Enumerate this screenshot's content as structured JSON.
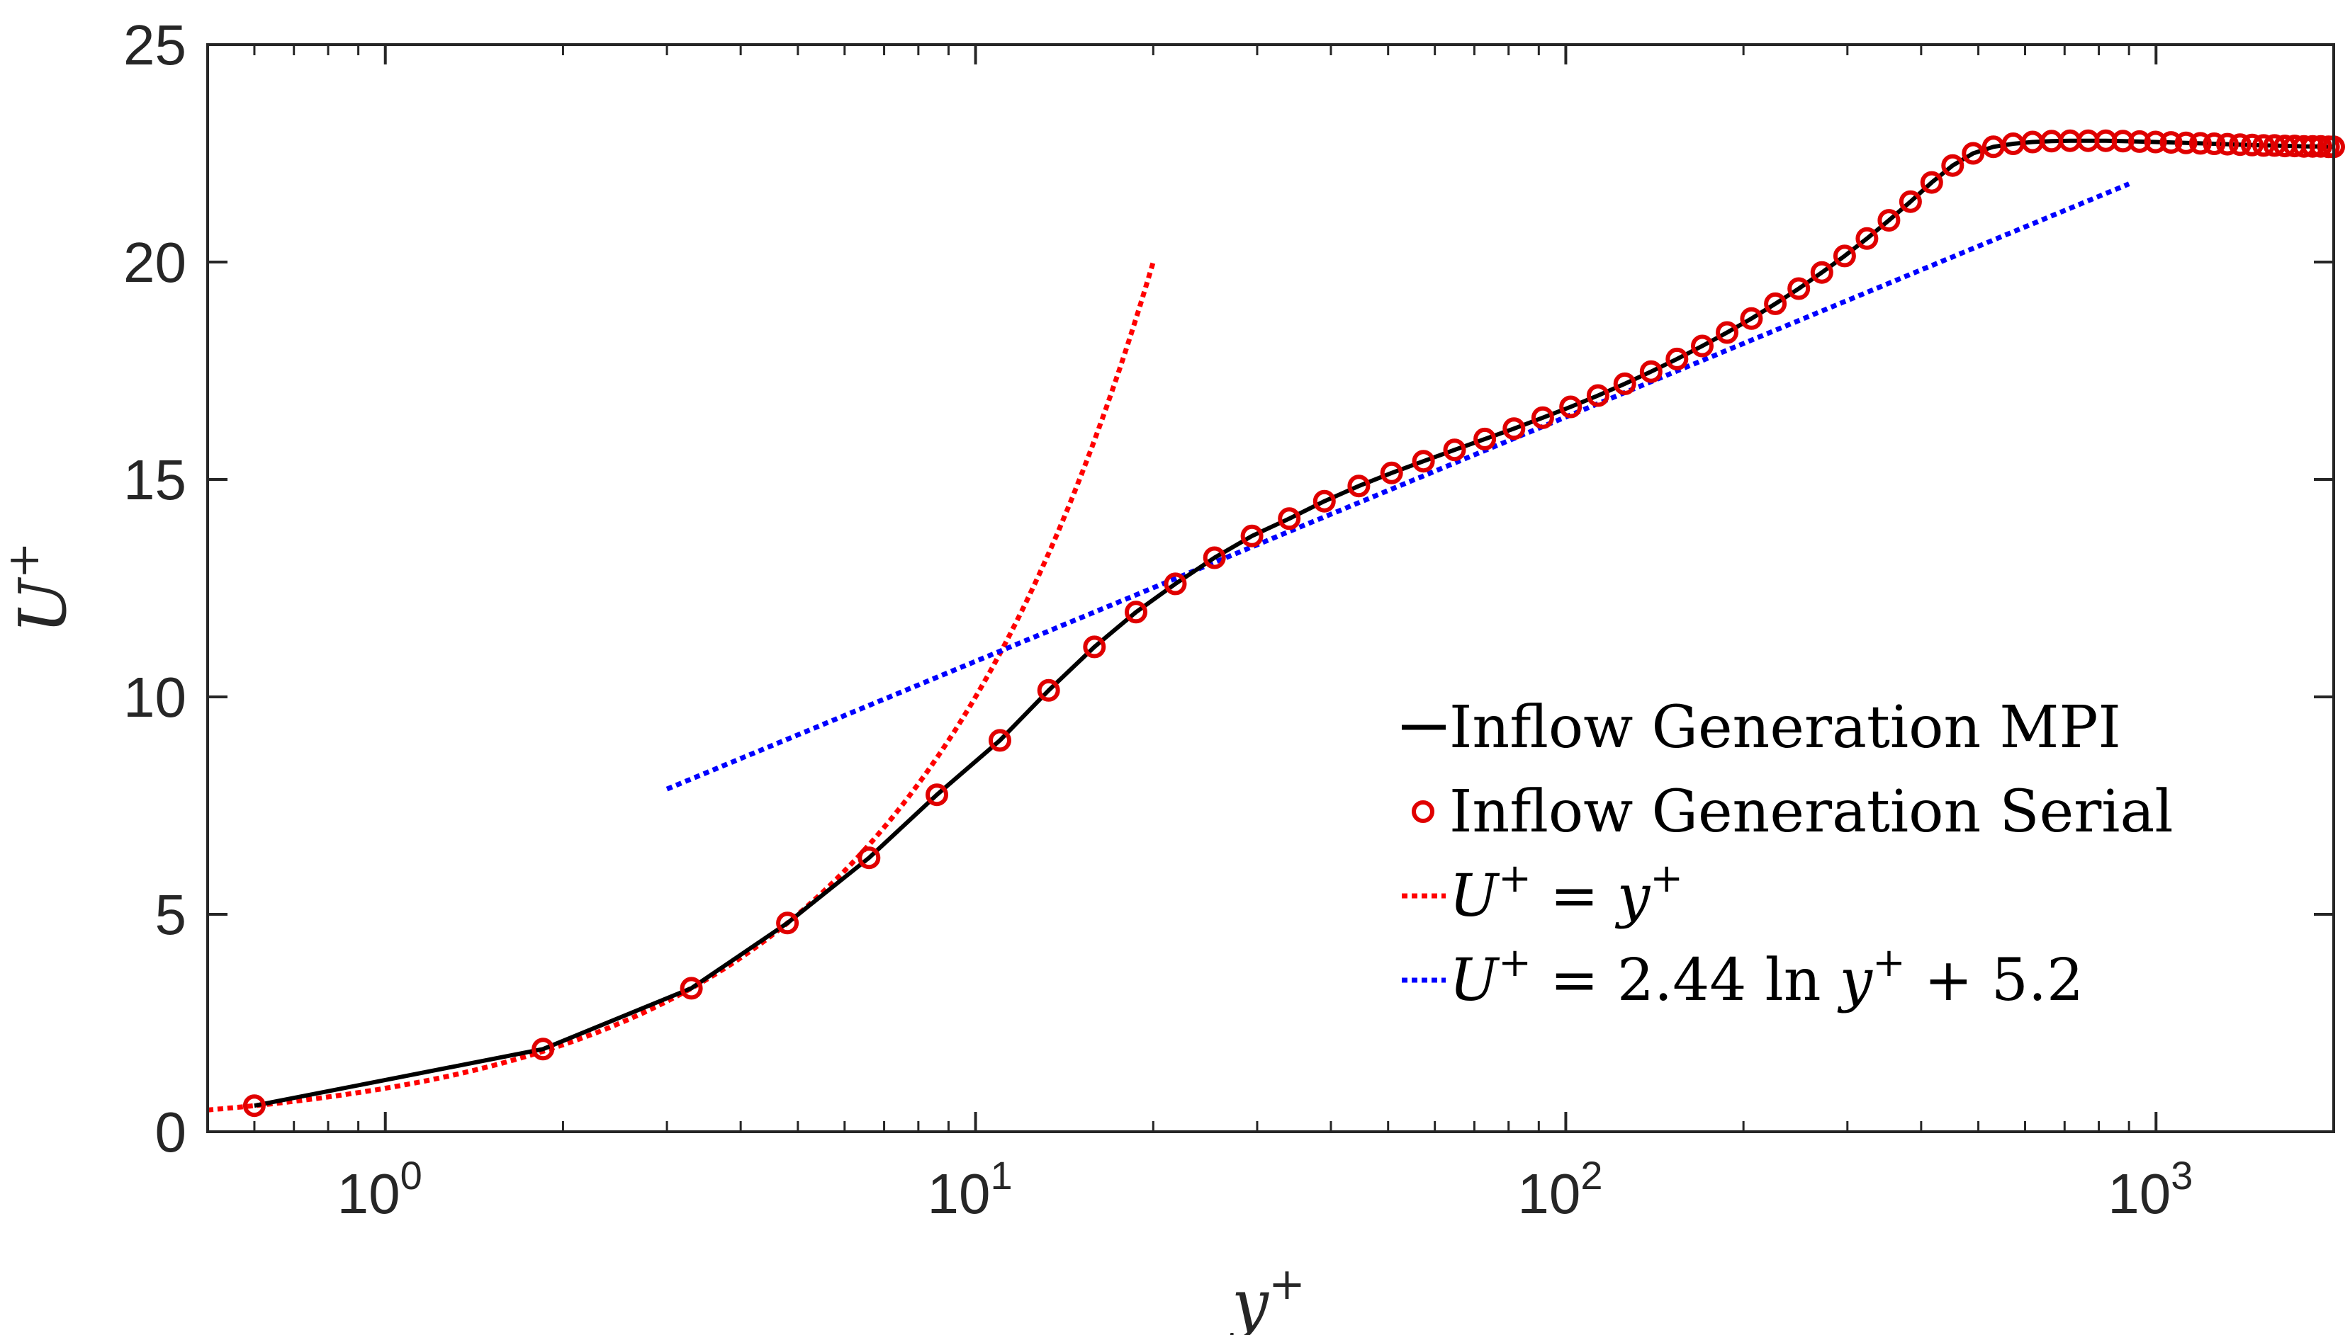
{
  "chart_data": {
    "type": "line",
    "xscale": "log",
    "xlim": [
      0.5,
      2000
    ],
    "ylim": [
      0,
      25
    ],
    "grid": false,
    "legend_position": "right",
    "xlabel": {
      "base": "y",
      "sup": "+"
    },
    "ylabel": {
      "base": "U",
      "sup": "+"
    },
    "x_ticks": [
      {
        "base": "10",
        "exp": "0"
      },
      {
        "base": "10",
        "exp": "1"
      },
      {
        "base": "10",
        "exp": "2"
      },
      {
        "base": "10",
        "exp": "3"
      }
    ],
    "y_ticks": [
      "0",
      "5",
      "10",
      "15",
      "20",
      "25"
    ],
    "series": [
      {
        "name": "Inflow Generation MPI",
        "style": "solid",
        "color": "#000000",
        "x": [
          0.6,
          1.85,
          3.3,
          4.8,
          6.6,
          8.6,
          11,
          13.3,
          15.9,
          18.7,
          21.8,
          25.4,
          29.4,
          34,
          39,
          44.6,
          50.7,
          57.4,
          64.8,
          72.9,
          81.7,
          91.4,
          101.9,
          113.4,
          125.9,
          139.5,
          154.3,
          170.3,
          187.6,
          206.3,
          226.5,
          248.2,
          271.6,
          296.8,
          323.8,
          352.8,
          383.8,
          416.9,
          452.3,
          490.1,
          530.2,
          572.8,
          617.8,
          665.3,
          715.2,
          767.5,
          822.1,
          878.8,
          937.6,
          998.2,
          1060.5,
          1124.1,
          1189,
          1254.8,
          1321.2,
          1388,
          1454.8,
          1521.5,
          1587.6,
          1653,
          1717.4,
          1780.5,
          1842.1,
          1902,
          1960,
          2000
        ],
        "y": [
          0.6,
          1.9,
          3.3,
          4.8,
          6.3,
          7.75,
          9.0,
          10.15,
          11.15,
          11.95,
          12.6,
          13.2,
          13.7,
          14.1,
          14.5,
          14.85,
          15.15,
          15.42,
          15.68,
          15.93,
          16.17,
          16.42,
          16.67,
          16.93,
          17.2,
          17.48,
          17.77,
          18.07,
          18.38,
          18.7,
          19.04,
          19.39,
          19.76,
          20.14,
          20.54,
          20.96,
          21.39,
          21.83,
          22.22,
          22.5,
          22.65,
          22.72,
          22.76,
          22.78,
          22.79,
          22.79,
          22.79,
          22.78,
          22.77,
          22.76,
          22.75,
          22.74,
          22.73,
          22.72,
          22.71,
          22.7,
          22.69,
          22.68,
          22.68,
          22.67,
          22.67,
          22.66,
          22.66,
          22.66,
          22.65,
          22.65
        ]
      },
      {
        "name": "Inflow Generation Serial",
        "style": "markers",
        "marker": "circle",
        "color": "#e00000",
        "x": [
          0.6,
          1.85,
          3.3,
          4.8,
          6.6,
          8.6,
          11,
          13.3,
          15.9,
          18.7,
          21.8,
          25.4,
          29.4,
          34,
          39,
          44.6,
          50.7,
          57.4,
          64.8,
          72.9,
          81.7,
          91.4,
          101.9,
          113.4,
          125.9,
          139.5,
          154.3,
          170.3,
          187.6,
          206.3,
          226.5,
          248.2,
          271.6,
          296.8,
          323.8,
          352.8,
          383.8,
          416.9,
          452.3,
          490.1,
          530.2,
          572.8,
          617.8,
          665.3,
          715.2,
          767.5,
          822.1,
          878.8,
          937.6,
          998.2,
          1060.5,
          1124.1,
          1189,
          1254.8,
          1321.2,
          1388,
          1454.8,
          1521.5,
          1587.6,
          1653,
          1717.4,
          1780.5,
          1842.1,
          1902,
          1960,
          2000
        ],
        "y": [
          0.6,
          1.9,
          3.3,
          4.8,
          6.3,
          7.75,
          9.0,
          10.15,
          11.15,
          11.95,
          12.6,
          13.2,
          13.7,
          14.1,
          14.5,
          14.85,
          15.15,
          15.42,
          15.68,
          15.93,
          16.17,
          16.42,
          16.67,
          16.93,
          17.2,
          17.48,
          17.77,
          18.07,
          18.38,
          18.7,
          19.04,
          19.39,
          19.76,
          20.14,
          20.54,
          20.96,
          21.39,
          21.83,
          22.22,
          22.5,
          22.65,
          22.72,
          22.76,
          22.78,
          22.79,
          22.79,
          22.79,
          22.78,
          22.77,
          22.76,
          22.75,
          22.74,
          22.73,
          22.72,
          22.71,
          22.7,
          22.69,
          22.68,
          22.68,
          22.67,
          22.67,
          22.66,
          22.66,
          22.66,
          22.65,
          22.65
        ]
      },
      {
        "name": "U+ = y+",
        "style": "dotted",
        "color": "#ff0000",
        "formula": "U+ = y+",
        "x_range": [
          0.5,
          20
        ]
      },
      {
        "name": "U+ = 2.44 ln y+ + 5.2",
        "style": "dotted",
        "color": "#0000ff",
        "formula": "U+ = 2.44 ln y+ + 5.2",
        "x_range": [
          3,
          900
        ]
      }
    ],
    "legend": [
      {
        "text": "Inflow Generation MPI",
        "symbol": "line",
        "color": "#000000"
      },
      {
        "text": "Inflow Generation Serial",
        "symbol": "circle",
        "color": "#e00000"
      },
      {
        "text_parts": [
          "U",
          "+",
          " = ",
          "y",
          "+"
        ],
        "symbol": "dotted",
        "color": "#ff0000"
      },
      {
        "text_parts": [
          "U",
          "+",
          " = 2.44 ln ",
          "y",
          "+",
          " + 5.2"
        ],
        "symbol": "dotted",
        "color": "#0000ff"
      }
    ]
  }
}
